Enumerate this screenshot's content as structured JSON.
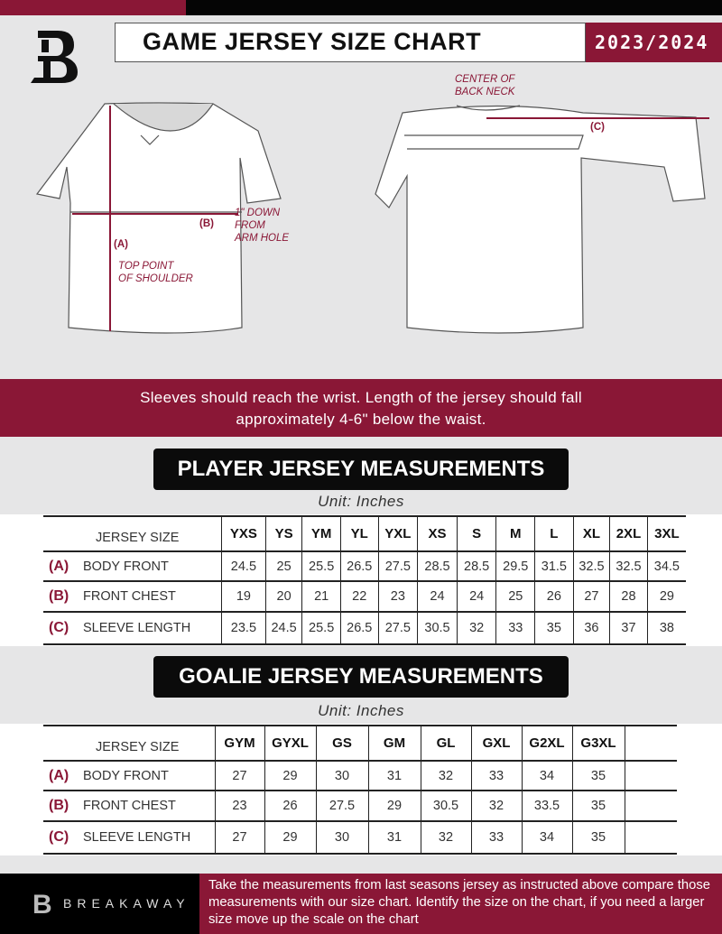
{
  "header": {
    "title": "GAME JERSEY SIZE CHART",
    "season": "2023/2024",
    "logo_text": "B"
  },
  "diagram": {
    "labels": {
      "center_back_neck_1": "CENTER OF",
      "center_back_neck_2": "BACK NECK",
      "c": "(C)",
      "b": "(B)",
      "a": "(A)",
      "down_1": "1\" DOWN",
      "down_2": "FROM",
      "down_3": "ARM HOLE",
      "shoulder_1": "TOP POINT",
      "shoulder_2": "OF SHOULDER"
    }
  },
  "instructions": {
    "line1": "Sleeves should reach the wrist. Length of the jersey should fall",
    "line2": "approximately 4-6\" below the waist."
  },
  "player": {
    "title": "PLAYER JERSEY MEASUREMENTS",
    "unit": "Unit: Inches",
    "size_label": "JERSEY SIZE",
    "sizes": [
      "YXS",
      "YS",
      "YM",
      "YL",
      "YXL",
      "XS",
      "S",
      "M",
      "L",
      "XL",
      "2XL",
      "3XL"
    ],
    "rows": [
      {
        "letter": "(A)",
        "name": "BODY FRONT",
        "values": [
          "24.5",
          "25",
          "25.5",
          "26.5",
          "27.5",
          "28.5",
          "28.5",
          "29.5",
          "31.5",
          "32.5",
          "32.5",
          "34.5"
        ]
      },
      {
        "letter": "(B)",
        "name": "FRONT CHEST",
        "values": [
          "19",
          "20",
          "21",
          "22",
          "23",
          "24",
          "24",
          "25",
          "26",
          "27",
          "28",
          "29"
        ]
      },
      {
        "letter": "(C)",
        "name": "SLEEVE LENGTH",
        "values": [
          "23.5",
          "24.5",
          "25.5",
          "26.5",
          "27.5",
          "30.5",
          "32",
          "33",
          "35",
          "36",
          "37",
          "38"
        ]
      }
    ]
  },
  "goalie": {
    "title": "GOALIE JERSEY MEASUREMENTS",
    "unit": "Unit: Inches",
    "size_label": "JERSEY SIZE",
    "sizes": [
      "GYM",
      "GYXL",
      "GS",
      "GM",
      "GL",
      "GXL",
      "G2XL",
      "G3XL",
      ""
    ],
    "rows": [
      {
        "letter": "(A)",
        "name": "BODY FRONT",
        "values": [
          "27",
          "29",
          "30",
          "31",
          "32",
          "33",
          "34",
          "35",
          ""
        ]
      },
      {
        "letter": "(B)",
        "name": "FRONT CHEST",
        "values": [
          "23",
          "26",
          "27.5",
          "29",
          "30.5",
          "32",
          "33.5",
          "35",
          ""
        ]
      },
      {
        "letter": "(C)",
        "name": "SLEEVE LENGTH",
        "values": [
          "27",
          "29",
          "30",
          "31",
          "32",
          "33",
          "34",
          "35",
          ""
        ]
      }
    ]
  },
  "footer": {
    "brand": "BREAKAWAY",
    "text": "Take the measurements from last seasons jersey as instructed above compare those measurements  with our size chart. Identify the size on the chart, if you need a larger size move up the scale on the chart"
  },
  "colors": {
    "accent": "#8a1736",
    "black": "#050505",
    "background": "#e6e6e7"
  }
}
